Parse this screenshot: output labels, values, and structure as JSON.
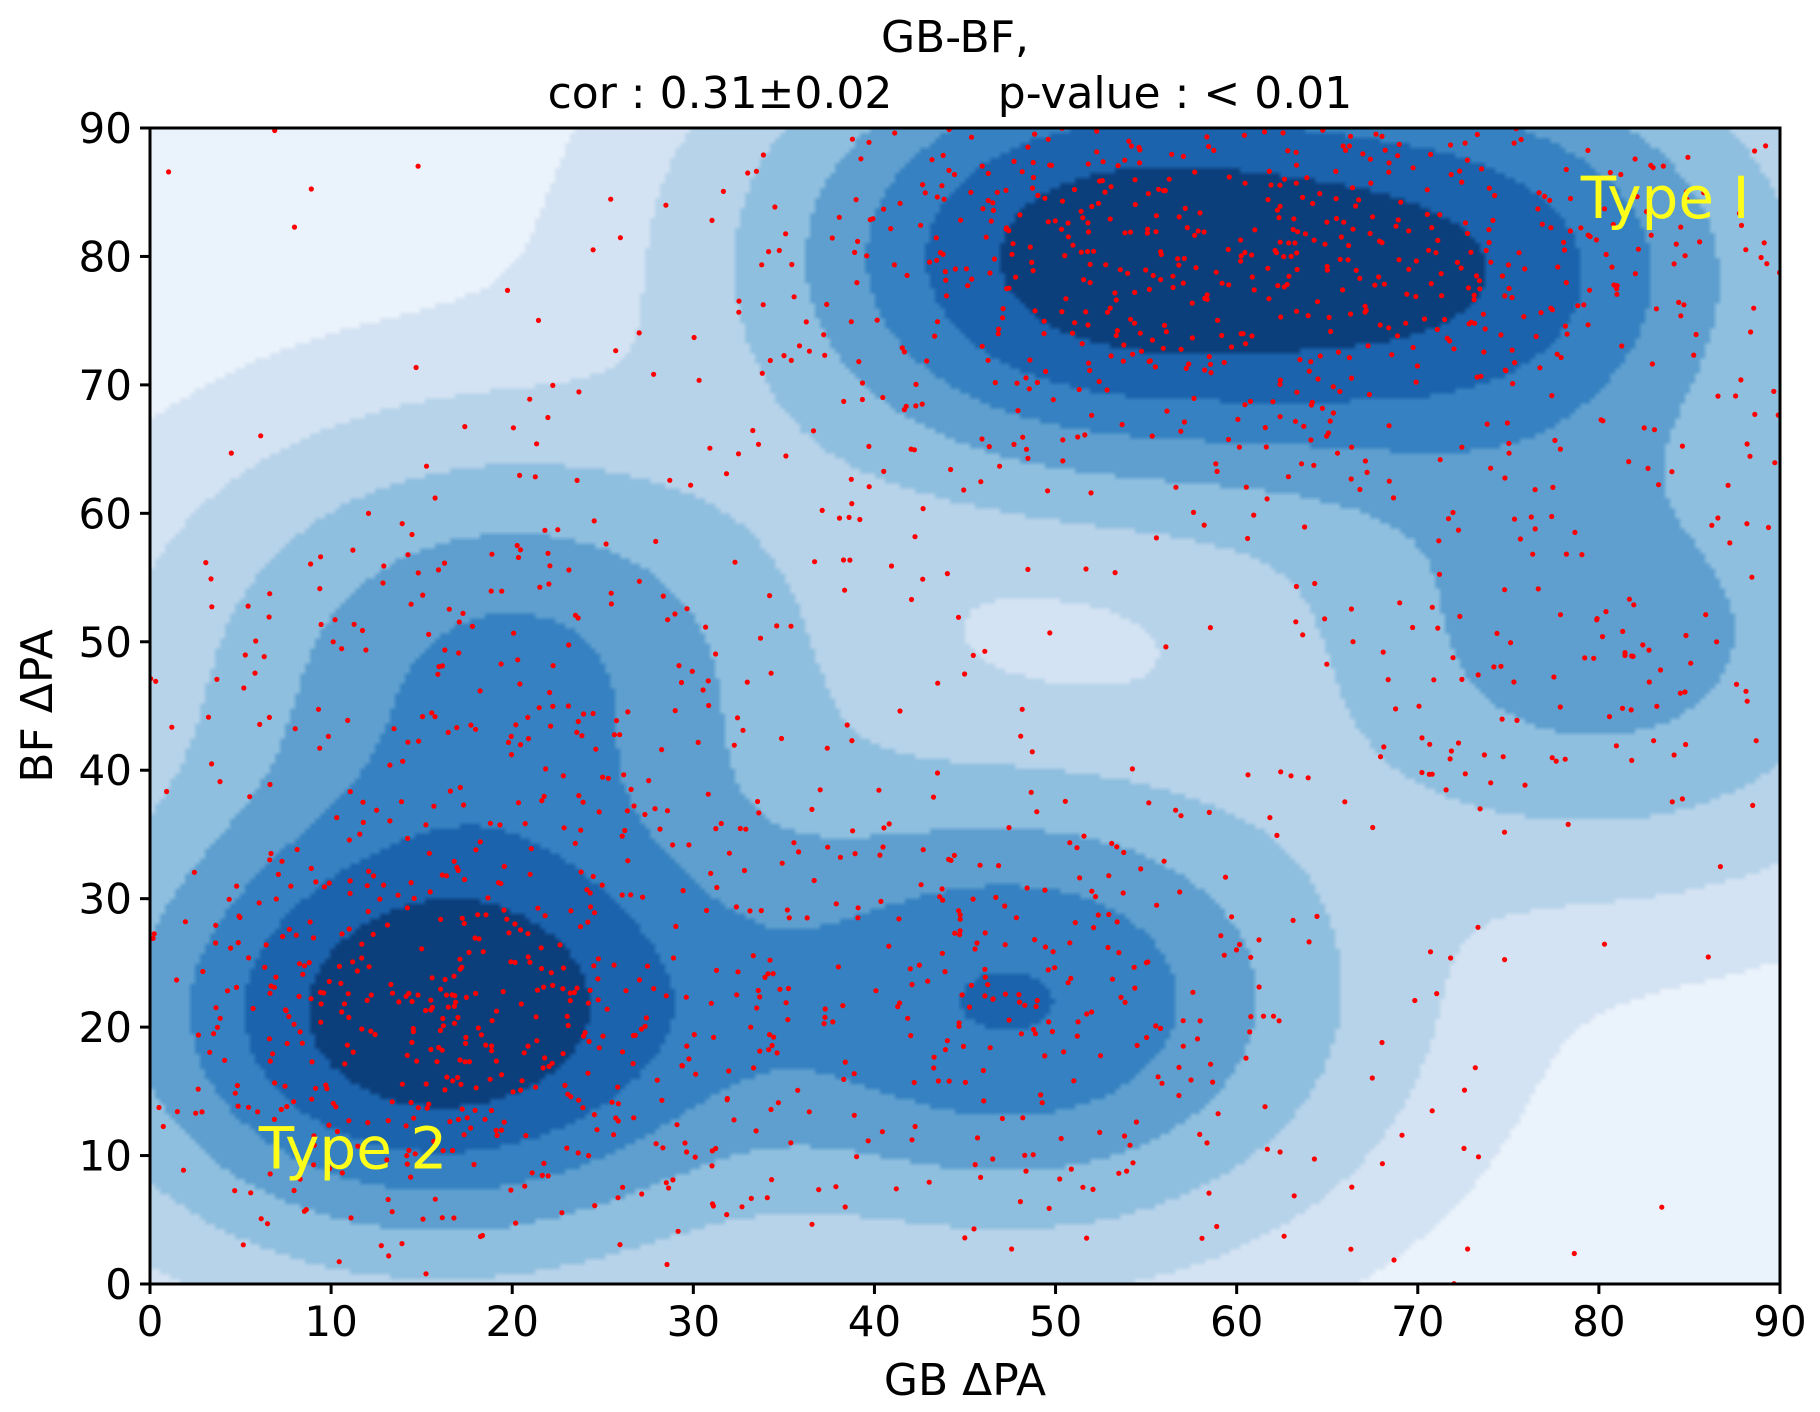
{
  "chart_data": {
    "type": "scatter",
    "subtype": "kde-contour-with-scatter",
    "title": "GB-BF,",
    "subtitle": {
      "cor_label": "cor : 0.31±0.02",
      "p_label": "p-value : < 0.01"
    },
    "xlabel": "GB ΔPA",
    "ylabel": "BF ΔPA",
    "xlim": [
      0,
      90
    ],
    "ylim": [
      0,
      90
    ],
    "xticks": [
      0,
      10,
      20,
      30,
      40,
      50,
      60,
      70,
      80,
      90
    ],
    "yticks": [
      0,
      10,
      20,
      30,
      40,
      50,
      60,
      70,
      80,
      90
    ],
    "grid": false,
    "annotations": [
      {
        "text": "Type I",
        "x": 79,
        "y": 83
      },
      {
        "text": "Type 2",
        "x": 6,
        "y": 9
      }
    ],
    "density_peaks": [
      {
        "x": 16,
        "y": 21,
        "weight": 1.0
      },
      {
        "x": 48,
        "y": 22,
        "weight": 0.6
      },
      {
        "x": 52,
        "y": 80,
        "weight": 0.85
      },
      {
        "x": 72,
        "y": 79,
        "weight": 0.7
      },
      {
        "x": 20,
        "y": 48,
        "weight": 0.45
      },
      {
        "x": 80,
        "y": 50,
        "weight": 0.35
      }
    ],
    "contour_colors": [
      "#eaf2fb",
      "#d4e3f3",
      "#b7d3ea",
      "#8fbfdf",
      "#5e9fcf",
      "#3581c1",
      "#1b63ad",
      "#0b3f7c"
    ],
    "point_color": "#ff0000",
    "point_count": 1800,
    "points": [
      [
        16.2,
        20.1
      ],
      [
        14.8,
        22.5
      ],
      [
        18.3,
        19.4
      ],
      [
        12.1,
        24.7
      ],
      [
        20.5,
        21.8
      ],
      [
        17.4,
        17.3
      ],
      [
        15.0,
        26.1
      ],
      [
        22.8,
        23.0
      ],
      [
        10.9,
        18.6
      ],
      [
        19.7,
        28.4
      ],
      [
        48.3,
        21.7
      ],
      [
        46.1,
        24.5
      ],
      [
        51.2,
        19.3
      ],
      [
        44.7,
        27.2
      ],
      [
        53.5,
        25.8
      ],
      [
        52.1,
        80.4
      ],
      [
        49.6,
        82.7
      ],
      [
        55.8,
        78.2
      ],
      [
        58.2,
        81.9
      ],
      [
        47.3,
        77.5
      ],
      [
        72.4,
        79.1
      ],
      [
        69.5,
        82.0
      ],
      [
        75.2,
        76.8
      ],
      [
        78.1,
        80.5
      ],
      [
        66.8,
        78.3
      ],
      [
        20.3,
        48.6
      ],
      [
        17.8,
        51.2
      ],
      [
        23.1,
        45.0
      ],
      [
        80.2,
        50.4
      ],
      [
        83.4,
        47.8
      ]
    ],
    "seed": 20240517
  }
}
